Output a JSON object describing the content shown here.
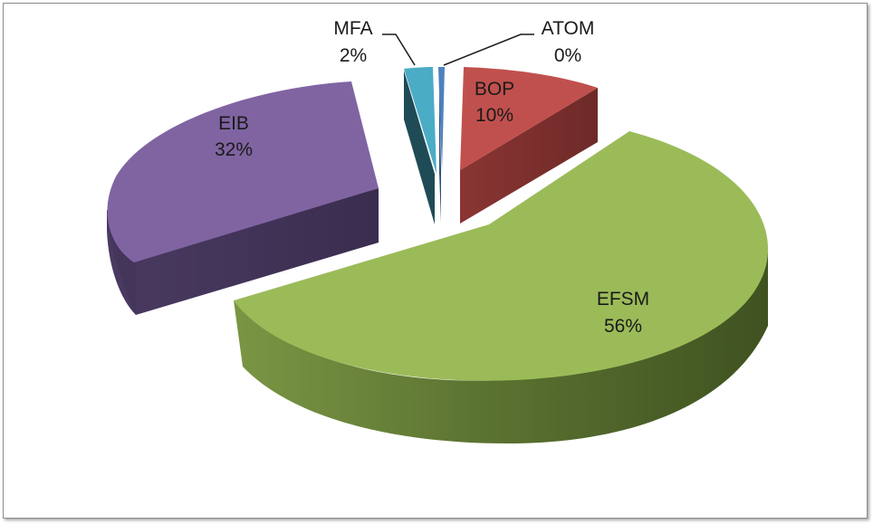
{
  "chart_data": {
    "type": "pie",
    "style": "3d-exploded",
    "title": "",
    "legend": "none",
    "slices": [
      {
        "name": "ATOM",
        "value": 0,
        "label": "0%",
        "color": "#4F81BD"
      },
      {
        "name": "BOP",
        "value": 10,
        "label": "10%",
        "color": "#C0504D"
      },
      {
        "name": "EFSM",
        "value": 56,
        "label": "56%",
        "color": "#9BBB59"
      },
      {
        "name": "EIB",
        "value": 32,
        "label": "32%",
        "color": "#8064A2"
      },
      {
        "name": "MFA",
        "value": 2,
        "label": "2%",
        "color": "#4BACC6"
      }
    ]
  }
}
